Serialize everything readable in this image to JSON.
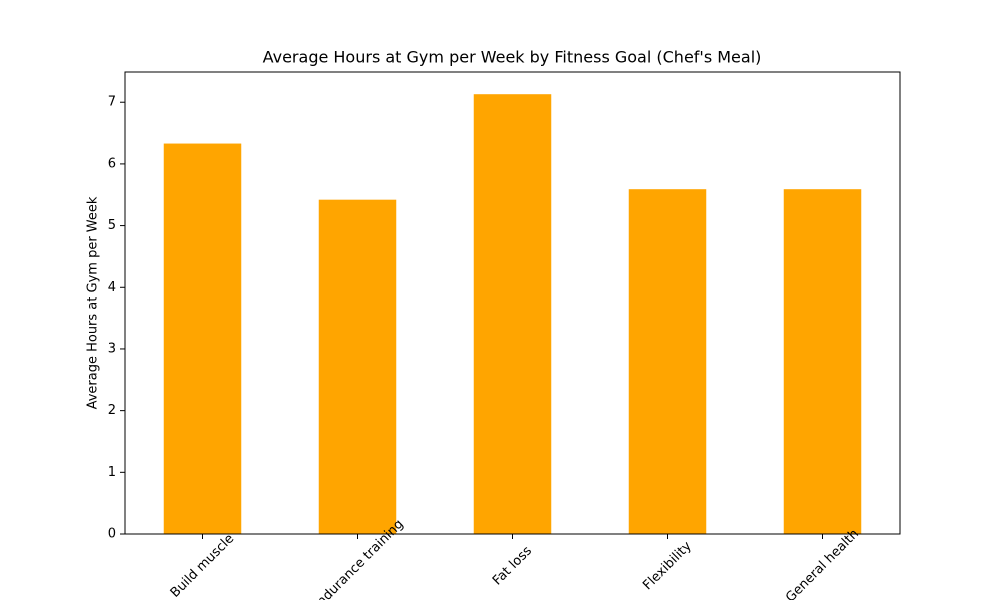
{
  "chart_data": {
    "type": "bar",
    "title": "Average Hours at Gym per Week by Fitness Goal (Chef's Meal)",
    "y_label": "Average Hours at Gym per Week",
    "categories": [
      "Build muscle",
      "Endurance training",
      "Fat loss",
      "Flexibility",
      "General health"
    ],
    "values": [
      6.33,
      5.42,
      7.13,
      5.59,
      5.59
    ],
    "color": "#ffa500",
    "ylim": [
      0,
      7.49
    ],
    "yticks": [
      0,
      1,
      2,
      3,
      4,
      5,
      6,
      7
    ]
  }
}
